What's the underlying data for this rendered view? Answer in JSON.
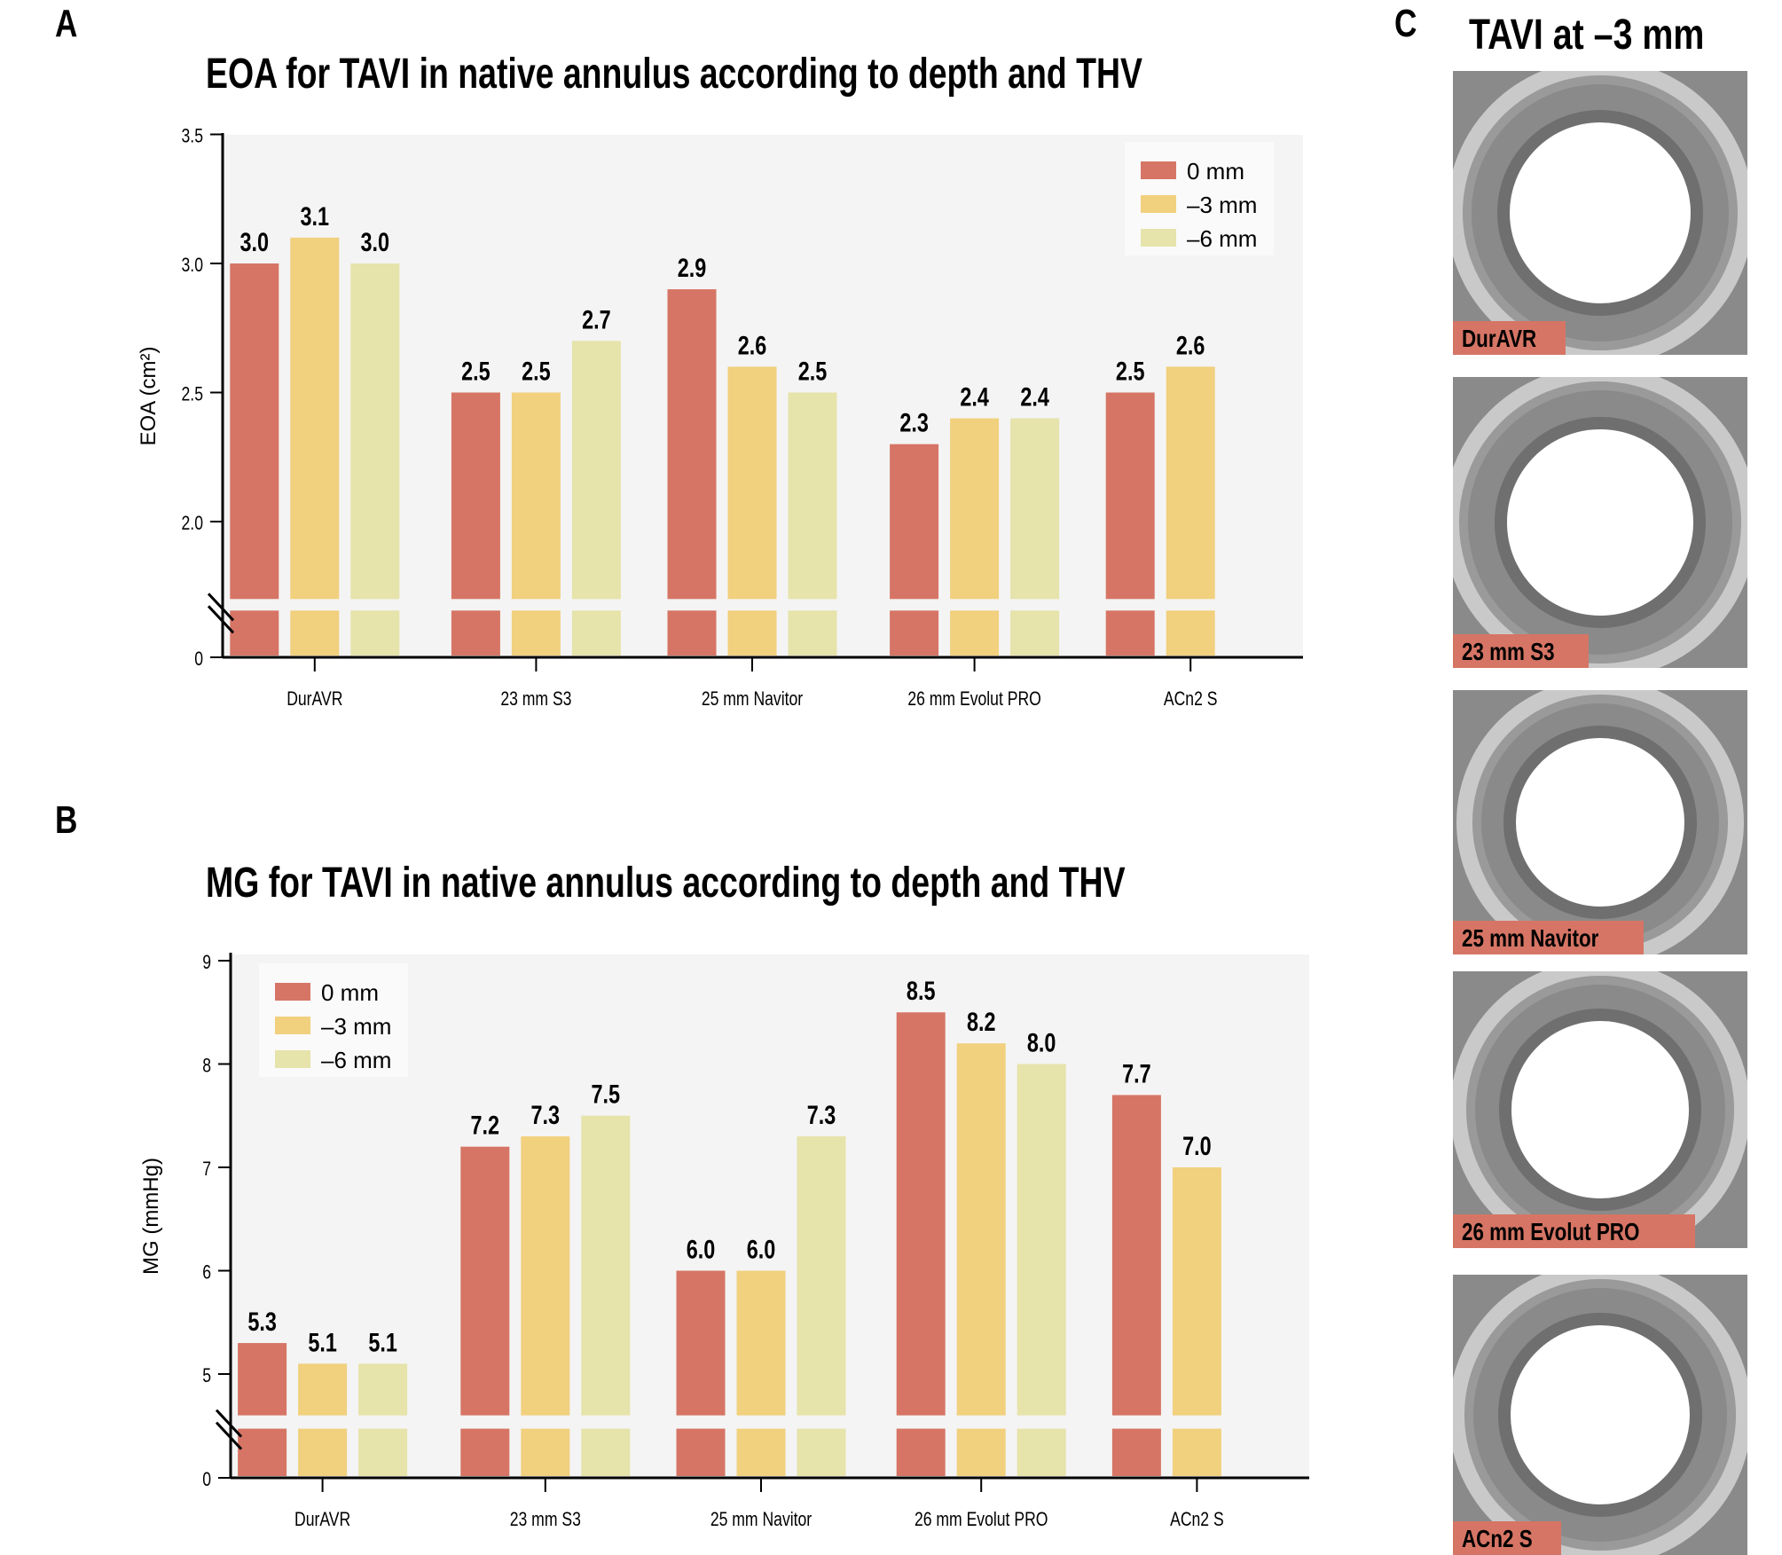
{
  "panels": {
    "a_letter": "A",
    "b_letter": "B",
    "c_letter": "C",
    "c_title": "TAVI at –3 mm",
    "c_images": [
      {
        "label": "DurAVR",
        "icon": "valve-photo"
      },
      {
        "label": "23 mm S3",
        "icon": "valve-photo"
      },
      {
        "label": "25 mm Navitor",
        "icon": "valve-photo"
      },
      {
        "label": "26 mm Evolut PRO",
        "icon": "valve-photo"
      },
      {
        "label": "ACn2 S",
        "icon": "valve-photo"
      }
    ]
  },
  "colors": {
    "s0": "#d67565",
    "s3": "#f1d07e",
    "s6": "#e6e3ab",
    "plot_bg": "#f4f4f4"
  },
  "chart_data": [
    {
      "type": "bar",
      "title": "EOA for TAVI in native annulus according to depth and THV",
      "xlabel": "",
      "ylabel": "EOA (cm²)",
      "ylim": [
        0,
        3.5
      ],
      "axis_break": [
        0,
        1.7
      ],
      "yticks": [
        "0",
        "2.0",
        "2.5",
        "3.0",
        "3.5"
      ],
      "grid": false,
      "legend_position": "top-right",
      "categories": [
        "DurAVR",
        "23 mm S3",
        "25 mm Navitor",
        "26 mm Evolut PRO",
        "ACn2 S"
      ],
      "series": [
        {
          "name": "0 mm",
          "values": [
            3.0,
            2.5,
            2.9,
            2.3,
            2.5
          ]
        },
        {
          "name": "–3 mm",
          "values": [
            3.1,
            2.5,
            2.6,
            2.4,
            2.6
          ]
        },
        {
          "name": "–6 mm",
          "values": [
            3.0,
            2.7,
            2.5,
            2.4,
            null
          ]
        }
      ],
      "data_labels": [
        [
          "3.0",
          "3.1",
          "3.0"
        ],
        [
          "2.5",
          "2.5",
          "2.7"
        ],
        [
          "2.9",
          "2.6",
          "2.5"
        ],
        [
          "2.3",
          "2.4",
          "2.4"
        ],
        [
          "2.5",
          "2.6",
          null
        ]
      ]
    },
    {
      "type": "bar",
      "title": "MG for TAVI in native annulus according to depth and THV",
      "xlabel": "",
      "ylabel": "MG (mmHg)",
      "ylim": [
        0,
        9
      ],
      "axis_break": [
        0,
        4.6
      ],
      "yticks": [
        "0",
        "5",
        "6",
        "7",
        "8",
        "9"
      ],
      "grid": false,
      "legend_position": "top-left",
      "categories": [
        "DurAVR",
        "23 mm S3",
        "25 mm Navitor",
        "26 mm Evolut PRO",
        "ACn2 S"
      ],
      "series": [
        {
          "name": "0 mm",
          "values": [
            5.3,
            7.2,
            6.0,
            8.5,
            7.7
          ]
        },
        {
          "name": "–3 mm",
          "values": [
            5.1,
            7.3,
            6.0,
            8.2,
            7.0
          ]
        },
        {
          "name": "–6 mm",
          "values": [
            5.1,
            7.5,
            7.3,
            8.0,
            null
          ]
        }
      ],
      "data_labels": [
        [
          "5.3",
          "5.1",
          "5.1"
        ],
        [
          "7.2",
          "7.3",
          "7.5"
        ],
        [
          "6.0",
          "6.0",
          "7.3"
        ],
        [
          "8.5",
          "8.2",
          "8.0"
        ],
        [
          "7.7",
          "7.0",
          null
        ]
      ]
    }
  ]
}
